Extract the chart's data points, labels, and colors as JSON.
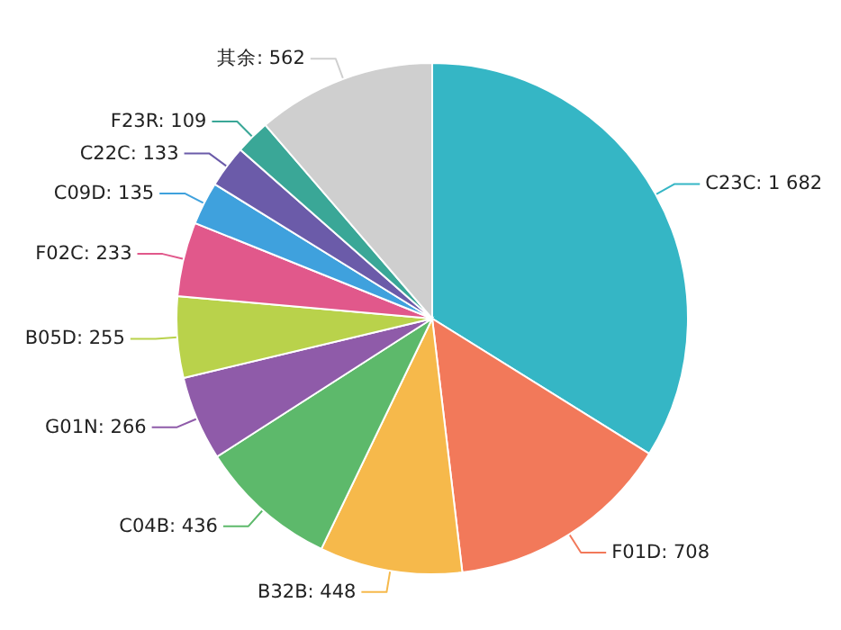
{
  "chart_data": {
    "type": "pie",
    "categories": [
      "C23C",
      "F01D",
      "B32B",
      "C04B",
      "G01N",
      "B05D",
      "F02C",
      "C09D",
      "C22C",
      "F23R",
      "其余"
    ],
    "values": [
      1682,
      708,
      448,
      436,
      266,
      255,
      233,
      135,
      133,
      109,
      562
    ],
    "value_labels": [
      "1 682",
      "708",
      "448",
      "436",
      "266",
      "255",
      "233",
      "135",
      "133",
      "109",
      "562"
    ],
    "colors": [
      "#35b6c5",
      "#f2795a",
      "#f6b94b",
      "#5db96b",
      "#8f5ba9",
      "#b9d24b",
      "#e1588b",
      "#3fa1dd",
      "#6b5ba9",
      "#3aa797",
      "#cfcfcf"
    ]
  }
}
